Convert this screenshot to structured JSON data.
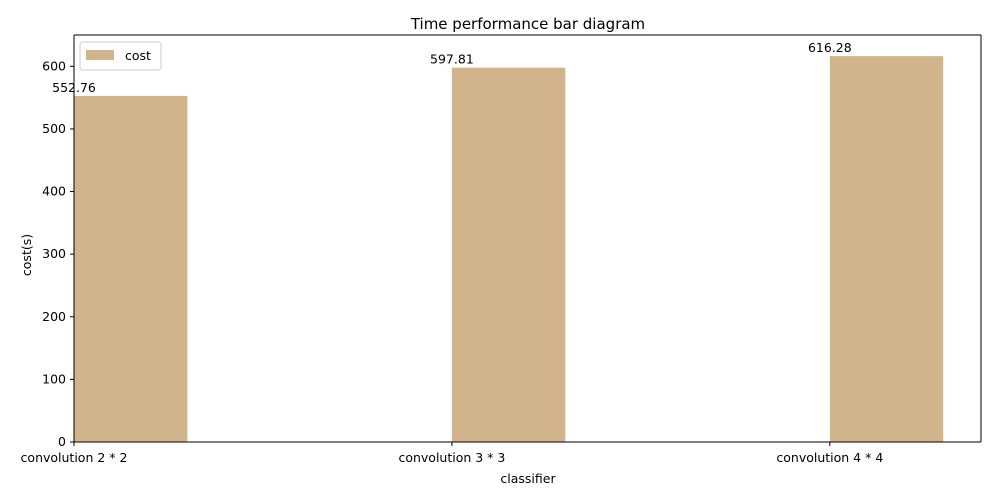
{
  "chart_data": {
    "type": "bar",
    "title": "Time performance bar diagram",
    "xlabel": "classifier",
    "ylabel": "cost(s)",
    "categories": [
      "convolution 2 * 2",
      "convolution 3 * 3",
      "convolution 4 * 4"
    ],
    "series": [
      {
        "name": "cost",
        "values": [
          552.76,
          597.81,
          616.28
        ],
        "color": "#d2b48c"
      }
    ],
    "data_labels": [
      "552.76",
      "597.81",
      "616.28"
    ],
    "yticks": [
      0,
      100,
      200,
      300,
      400,
      500,
      600
    ],
    "ylim": [
      0,
      650
    ],
    "legend": "top-left",
    "grid": false
  }
}
